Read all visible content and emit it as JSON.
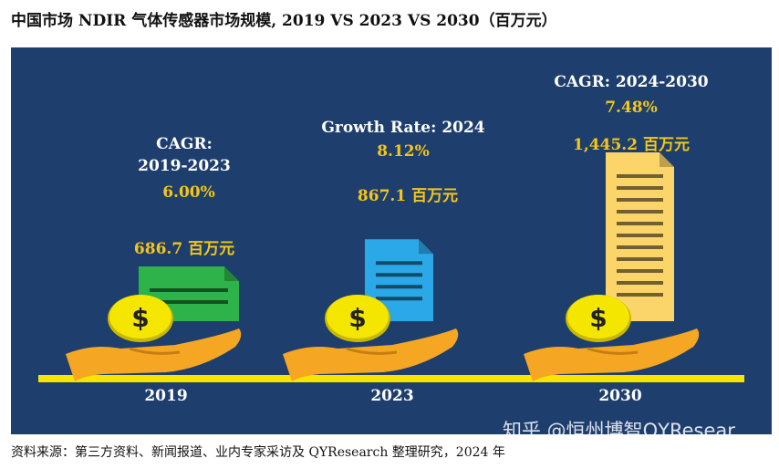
{
  "title": "中国市场 NDIR 气体传感器市场规模, 2019 VS 2023 VS 2030（百万元）",
  "source": "资料来源：第三方资料、新闻报道、业内专家采访及 QYResearch 整理研究，2024 年",
  "watermark": "知乎 @恒州博智QYResear...",
  "colors": {
    "panel": "#1e3f6e",
    "baseline": "#f5e600",
    "gold": "#f5c518",
    "doc_2019": "#2db34a",
    "doc_2023": "#2aa8e8",
    "doc_2030": "#fbd56a",
    "hand": "#f5a623",
    "coin": "#f5e600"
  },
  "chart_data": {
    "type": "bar",
    "categories": [
      "2019",
      "2023",
      "2030"
    ],
    "values": [
      686.7,
      867.1,
      1445.2
    ],
    "unit": "百万元",
    "value_labels": [
      "686.7 百万元",
      "867.1 百万元",
      "1,445.2 百万元"
    ],
    "annotations": [
      {
        "label_lines": [
          "CAGR:",
          "2019-2023"
        ],
        "value": "6.00%"
      },
      {
        "label_lines": [
          "Growth Rate: 2024"
        ],
        "value": "8.12%"
      },
      {
        "label_lines": [
          "CAGR: 2024-2030"
        ],
        "value": "7.48%"
      }
    ],
    "icons": [
      "document-icon",
      "coin-icon",
      "hand-icon"
    ]
  }
}
